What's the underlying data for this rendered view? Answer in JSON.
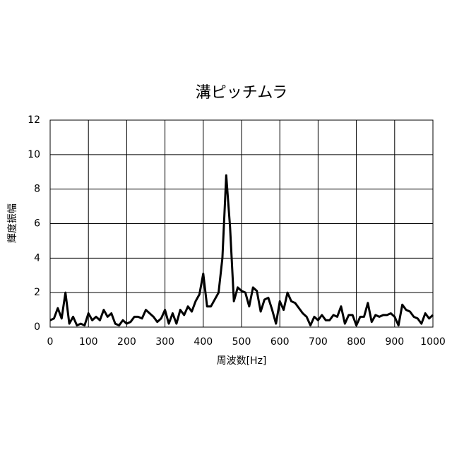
{
  "chart_data": {
    "type": "line",
    "title": "溝ピッチムラ",
    "x_label": "周波数[Hz]",
    "y_label": "輝度振幅",
    "x": [
      0,
      10,
      20,
      30,
      40,
      50,
      60,
      70,
      80,
      90,
      100,
      110,
      120,
      130,
      140,
      150,
      160,
      170,
      180,
      190,
      200,
      210,
      220,
      230,
      240,
      250,
      260,
      270,
      280,
      290,
      300,
      310,
      320,
      330,
      340,
      350,
      360,
      370,
      380,
      390,
      400,
      410,
      420,
      430,
      440,
      450,
      460,
      470,
      480,
      490,
      500,
      510,
      520,
      530,
      540,
      550,
      560,
      570,
      580,
      590,
      600,
      610,
      620,
      630,
      640,
      650,
      660,
      670,
      680,
      690,
      700,
      710,
      720,
      730,
      740,
      750,
      760,
      770,
      780,
      790,
      800,
      810,
      820,
      830,
      840,
      850,
      860,
      870,
      880,
      890,
      900,
      910,
      920,
      930,
      940,
      950,
      960,
      970,
      980,
      990,
      1000
    ],
    "series": [
      {
        "color": "#000000",
        "values": [
          0.4,
          0.5,
          1.1,
          0.5,
          2.0,
          0.2,
          0.6,
          0.1,
          0.2,
          0.1,
          0.8,
          0.4,
          0.6,
          0.4,
          1.0,
          0.6,
          0.8,
          0.2,
          0.1,
          0.4,
          0.2,
          0.3,
          0.6,
          0.6,
          0.5,
          1.0,
          0.8,
          0.6,
          0.3,
          0.5,
          1.0,
          0.2,
          0.8,
          0.2,
          1.0,
          0.7,
          1.2,
          0.9,
          1.5,
          1.9,
          3.1,
          1.2,
          1.2,
          1.6,
          2.0,
          4.0,
          8.8,
          5.8,
          1.5,
          2.3,
          2.1,
          2.0,
          1.2,
          2.3,
          2.1,
          0.9,
          1.6,
          1.7,
          1.0,
          0.2,
          1.5,
          1.0,
          2.0,
          1.5,
          1.4,
          1.1,
          0.8,
          0.6,
          0.1,
          0.6,
          0.4,
          0.7,
          0.4,
          0.4,
          0.7,
          0.6,
          1.2,
          0.2,
          0.7,
          0.7,
          0.1,
          0.6,
          0.6,
          1.4,
          0.3,
          0.7,
          0.6,
          0.7,
          0.7,
          0.8,
          0.6,
          0.1,
          1.3,
          1.0,
          0.9,
          0.6,
          0.5,
          0.2,
          0.8,
          0.5,
          0.7
        ]
      }
    ],
    "xlim": [
      0,
      1000
    ],
    "xticks": [
      0,
      100,
      200,
      300,
      400,
      500,
      600,
      700,
      800,
      900,
      1000
    ],
    "ylim": [
      0,
      12
    ],
    "yticks": [
      0,
      2,
      4,
      6,
      8,
      10,
      12
    ],
    "grid": true
  }
}
